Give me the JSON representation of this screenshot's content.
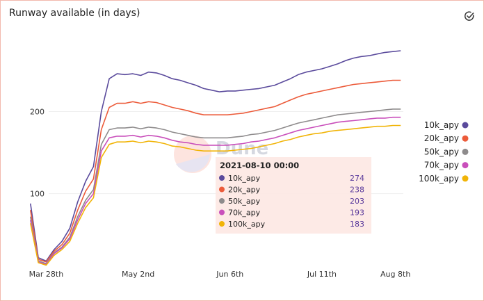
{
  "panel": {
    "title": "Runway available (in days)",
    "check_icon": "check-circle-icon"
  },
  "watermark": {
    "text": "Dune"
  },
  "chart_data": {
    "type": "line",
    "title": "Runway available (in days)",
    "x_labels": [
      "Mar 28th",
      "May 2nd",
      "Jun 6th",
      "Jul 11th",
      "Aug 8th"
    ],
    "x_label_dates": [
      "2021-03-28",
      "2021-05-02",
      "2021-06-06",
      "2021-07-11",
      "2021-08-08"
    ],
    "x_range": [
      "2021-03-21",
      "2021-08-11"
    ],
    "y_ticks": [
      100,
      200
    ],
    "ylim": [
      10,
      285
    ],
    "grid": true,
    "legend_position": "right",
    "x": [
      "2021-03-22",
      "2021-03-25",
      "2021-03-28",
      "2021-03-31",
      "2021-04-03",
      "2021-04-06",
      "2021-04-09",
      "2021-04-12",
      "2021-04-15",
      "2021-04-18",
      "2021-04-21",
      "2021-04-24",
      "2021-04-27",
      "2021-04-30",
      "2021-05-03",
      "2021-05-06",
      "2021-05-09",
      "2021-05-12",
      "2021-05-15",
      "2021-05-18",
      "2021-05-21",
      "2021-05-24",
      "2021-05-27",
      "2021-05-30",
      "2021-06-02",
      "2021-06-05",
      "2021-06-08",
      "2021-06-11",
      "2021-06-14",
      "2021-06-17",
      "2021-06-20",
      "2021-06-23",
      "2021-06-26",
      "2021-06-29",
      "2021-07-02",
      "2021-07-05",
      "2021-07-08",
      "2021-07-11",
      "2021-07-14",
      "2021-07-17",
      "2021-07-20",
      "2021-07-23",
      "2021-07-26",
      "2021-07-29",
      "2021-08-01",
      "2021-08-04",
      "2021-08-07",
      "2021-08-10"
    ],
    "series": [
      {
        "name": "10k_apy",
        "color": "#5a4a9c",
        "values": [
          88,
          22,
          18,
          32,
          42,
          58,
          90,
          115,
          133,
          200,
          240,
          246,
          245,
          246,
          244,
          248,
          247,
          244,
          240,
          238,
          235,
          232,
          228,
          226,
          224,
          225,
          225,
          226,
          227,
          228,
          230,
          232,
          236,
          240,
          245,
          248,
          250,
          252,
          255,
          258,
          262,
          265,
          267,
          268,
          270,
          272,
          273,
          274
        ]
      },
      {
        "name": "20k_apy",
        "color": "#ec5b3a",
        "values": [
          80,
          20,
          17,
          30,
          38,
          52,
          80,
          103,
          118,
          178,
          205,
          210,
          210,
          212,
          210,
          212,
          211,
          208,
          205,
          203,
          201,
          198,
          196,
          196,
          196,
          196,
          197,
          198,
          200,
          202,
          204,
          206,
          210,
          214,
          218,
          221,
          223,
          225,
          227,
          229,
          231,
          233,
          234,
          235,
          236,
          237,
          238,
          238
        ]
      },
      {
        "name": "50k_apy",
        "color": "#8e8b8c",
        "values": [
          72,
          18,
          15,
          28,
          35,
          47,
          72,
          92,
          105,
          160,
          178,
          180,
          180,
          181,
          179,
          181,
          180,
          178,
          175,
          173,
          171,
          169,
          168,
          168,
          168,
          168,
          169,
          170,
          172,
          173,
          175,
          177,
          180,
          183,
          186,
          188,
          190,
          192,
          194,
          196,
          197,
          198,
          199,
          200,
          201,
          202,
          203,
          203
        ]
      },
      {
        "name": "70k_apy",
        "color": "#c94fbb",
        "values": [
          68,
          17,
          14,
          27,
          34,
          45,
          68,
          88,
          100,
          152,
          168,
          170,
          170,
          171,
          169,
          171,
          170,
          168,
          165,
          163,
          162,
          160,
          159,
          159,
          159,
          159,
          160,
          161,
          163,
          164,
          166,
          168,
          171,
          174,
          177,
          179,
          181,
          183,
          185,
          187,
          188,
          189,
          190,
          191,
          192,
          192,
          193,
          193
        ]
      },
      {
        "name": "100k_apy",
        "color": "#f1b407",
        "values": [
          64,
          16,
          13,
          25,
          32,
          42,
          64,
          83,
          95,
          144,
          160,
          163,
          163,
          164,
          162,
          164,
          163,
          161,
          158,
          157,
          155,
          153,
          152,
          152,
          152,
          152,
          153,
          154,
          155,
          157,
          159,
          161,
          164,
          166,
          169,
          171,
          173,
          174,
          176,
          177,
          178,
          179,
          180,
          181,
          182,
          182,
          183,
          183
        ]
      }
    ],
    "tooltip": {
      "title": "2021-08-10 00:00",
      "rows": [
        {
          "name": "10k_apy",
          "value": "274"
        },
        {
          "name": "20k_apy",
          "value": "238"
        },
        {
          "name": "50k_apy",
          "value": "203"
        },
        {
          "name": "70k_apy",
          "value": "193"
        },
        {
          "name": "100k_apy",
          "value": "183"
        }
      ]
    }
  }
}
